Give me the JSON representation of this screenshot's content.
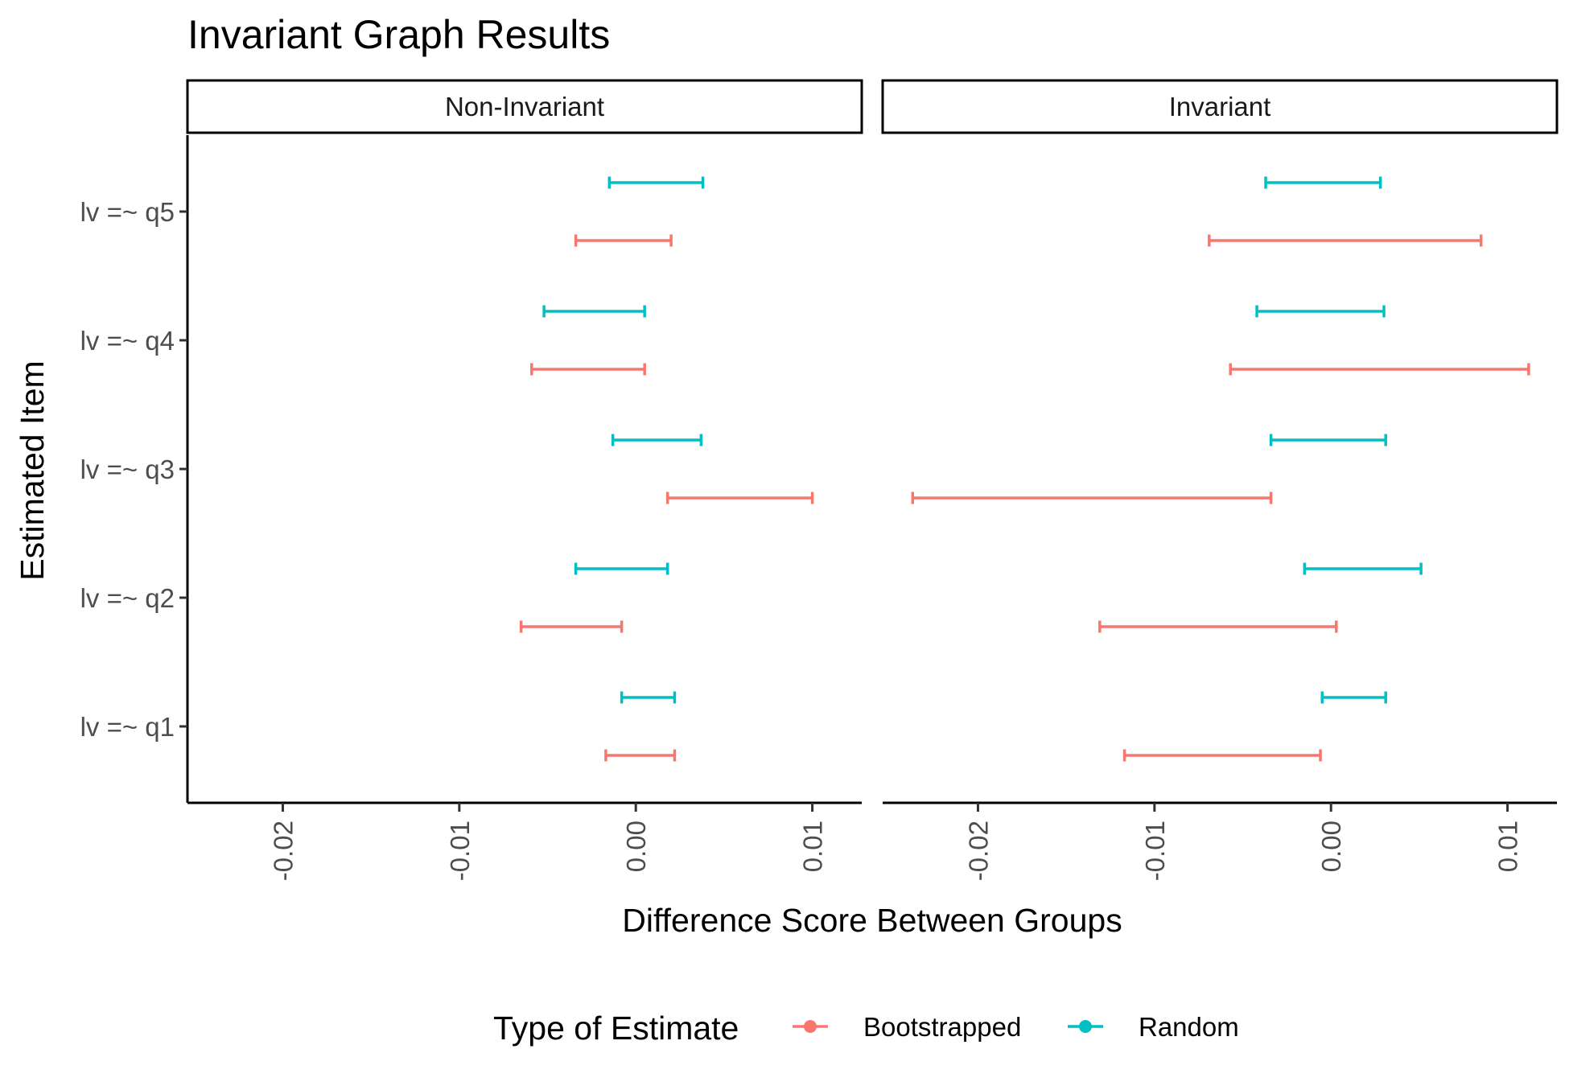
{
  "chart_data": {
    "type": "errorbar",
    "title": "Invariant Graph Results",
    "xlabel": "Difference Score Between Groups",
    "ylabel": "Estimated Item",
    "xlim": [
      -0.0254,
      0.0128
    ],
    "x_ticks": [
      -0.02,
      -0.01,
      0.0,
      0.01
    ],
    "x_tick_labels": [
      "-0.02",
      "-0.01",
      "0.00",
      "0.01"
    ],
    "categories": [
      "lv =~ q1",
      "lv =~ q2",
      "lv =~ q3",
      "lv =~ q4",
      "lv =~ q5"
    ],
    "grid": false,
    "legend": {
      "title": "Type of Estimate",
      "position": "bottom",
      "entries": [
        {
          "name": "Bootstrapped",
          "color": "#f8766d"
        },
        {
          "name": "Random",
          "color": "#00bfc4"
        }
      ]
    },
    "panels": [
      {
        "name": "Non-Invariant",
        "series": [
          {
            "name": "Bootstrapped",
            "color": "#f8766d",
            "lower": [
              -0.0017,
              -0.0065,
              0.0018,
              -0.0059,
              -0.0034
            ],
            "upper": [
              0.0022,
              -0.0008,
              0.01,
              0.0005,
              0.002
            ]
          },
          {
            "name": "Random",
            "color": "#00bfc4",
            "lower": [
              -0.0008,
              -0.0034,
              -0.0013,
              -0.0052,
              -0.0015
            ],
            "upper": [
              0.0022,
              0.0018,
              0.0037,
              0.0005,
              0.0038
            ]
          }
        ]
      },
      {
        "name": "Invariant",
        "series": [
          {
            "name": "Bootstrapped",
            "color": "#f8766d",
            "lower": [
              -0.0117,
              -0.0131,
              -0.0237,
              -0.0057,
              -0.0069
            ],
            "upper": [
              -0.0006,
              0.0003,
              -0.0034,
              0.0112,
              0.0085
            ]
          },
          {
            "name": "Random",
            "color": "#00bfc4",
            "lower": [
              -0.0005,
              -0.0015,
              -0.0034,
              -0.0042,
              -0.0037
            ],
            "upper": [
              0.0031,
              0.0051,
              0.0031,
              0.003,
              0.0028
            ]
          }
        ]
      }
    ]
  }
}
